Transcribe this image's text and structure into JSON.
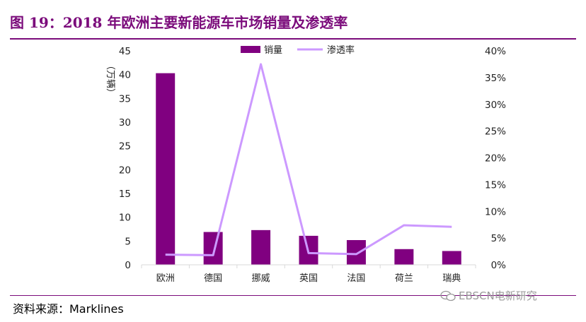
{
  "header": {
    "title": "图 19：2018 年欧洲主要新能源车市场销量及渗透率"
  },
  "footer": {
    "source": "资料来源：Marklines",
    "watermark": "EBSCN电新研究"
  },
  "colors": {
    "title": "#7b0b7b",
    "bar": "#800080",
    "line": "#cc99ff",
    "axis": "#d9d9d9"
  },
  "chart_data": {
    "type": "bar",
    "title": "",
    "ylabel": "（万辆）",
    "xlabel": "",
    "legend_position": "top",
    "grid": false,
    "categories": [
      "欧洲",
      "德国",
      "挪威",
      "英国",
      "法国",
      "荷兰",
      "瑞典"
    ],
    "series": [
      {
        "name": "销量",
        "type": "bar",
        "axis": "left",
        "values": [
          40.3,
          6.9,
          7.3,
          6.1,
          5.2,
          3.3,
          2.9
        ]
      },
      {
        "name": "渗透率",
        "type": "line",
        "axis": "right",
        "values": [
          0.019,
          0.018,
          0.375,
          0.022,
          0.02,
          0.074,
          0.071
        ]
      }
    ],
    "ylim": [
      0,
      45
    ],
    "y2lim": [
      0,
      0.4
    ],
    "yticks": [
      "0",
      "5",
      "10",
      "15",
      "20",
      "25",
      "30",
      "35",
      "40",
      "45"
    ],
    "y2ticks": [
      "0%",
      "5%",
      "10%",
      "15%",
      "20%",
      "25%",
      "30%",
      "35%",
      "40%"
    ]
  }
}
